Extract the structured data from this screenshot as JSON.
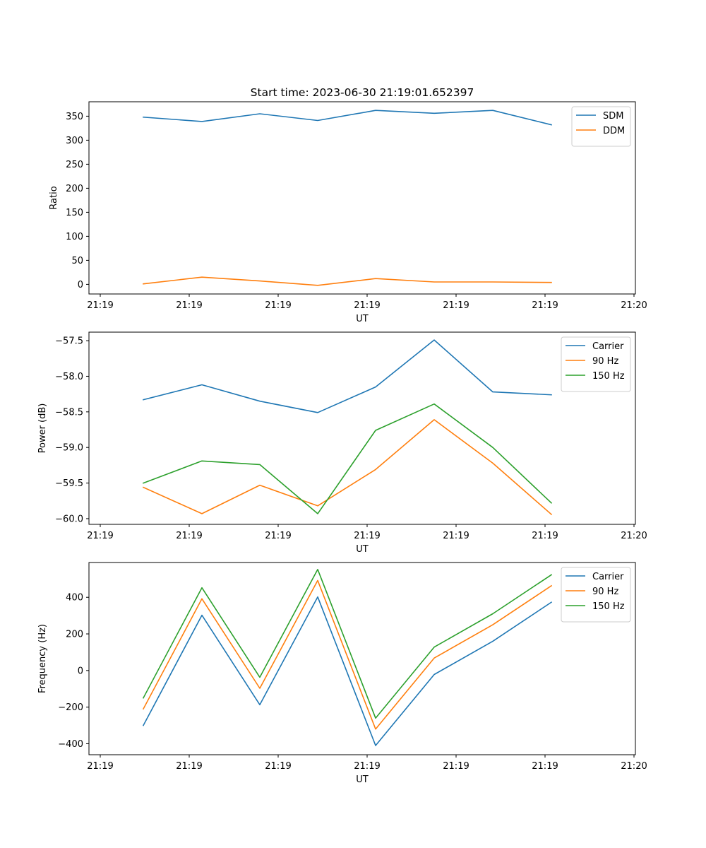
{
  "chart_data": [
    {
      "type": "line",
      "title": "Start time: 2023-06-30 21:19:01.652397",
      "xlabel": "UT",
      "ylabel": "Ratio",
      "x_tick_labels": [
        "21:19",
        "21:19",
        "21:19",
        "21:19",
        "21:19",
        "21:19",
        "21:20"
      ],
      "ylim": [
        -20,
        380
      ],
      "y_ticks": [
        0,
        50,
        100,
        150,
        200,
        250,
        300,
        350
      ],
      "legend_position": "top-right",
      "series": [
        {
          "name": "SDM",
          "color": "#1f77b4",
          "values": [
            348,
            339,
            355,
            341,
            362,
            356,
            362,
            332
          ]
        },
        {
          "name": "DDM",
          "color": "#ff7f0e",
          "values": [
            1,
            15,
            7,
            -2,
            12,
            5,
            5,
            4
          ]
        }
      ]
    },
    {
      "type": "line",
      "title": "",
      "xlabel": "UT",
      "ylabel": "Power (dB)",
      "x_tick_labels": [
        "21:19",
        "21:19",
        "21:19",
        "21:19",
        "21:19",
        "21:19",
        "21:20"
      ],
      "ylim": [
        -60.08,
        -57.38
      ],
      "y_ticks": [
        -60.0,
        -59.5,
        -59.0,
        -58.5,
        -58.0,
        -57.5
      ],
      "y_tick_labels": [
        "−60.0",
        "−59.5",
        "−59.0",
        "−58.5",
        "−58.0",
        "−57.5"
      ],
      "legend_position": "top-right",
      "series": [
        {
          "name": "Carrier",
          "color": "#1f77b4",
          "values": [
            -58.33,
            -58.12,
            -58.35,
            -58.51,
            -58.15,
            -57.49,
            -58.22,
            -58.26
          ]
        },
        {
          "name": "90 Hz",
          "color": "#ff7f0e",
          "values": [
            -59.56,
            -59.93,
            -59.53,
            -59.82,
            -59.31,
            -58.61,
            -59.22,
            -59.94
          ]
        },
        {
          "name": "150 Hz",
          "color": "#2ca02c",
          "values": [
            -59.5,
            -59.19,
            -59.24,
            -59.93,
            -58.76,
            -58.39,
            -59.0,
            -59.78
          ]
        }
      ]
    },
    {
      "type": "line",
      "title": "",
      "xlabel": "UT",
      "ylabel": "Frequency (Hz)",
      "x_tick_labels": [
        "21:19",
        "21:19",
        "21:19",
        "21:19",
        "21:19",
        "21:19",
        "21:20"
      ],
      "ylim": [
        -460,
        590
      ],
      "y_ticks": [
        -400,
        -200,
        0,
        200,
        400
      ],
      "y_tick_labels": [
        "−400",
        "−200",
        "0",
        "200",
        "400"
      ],
      "legend_position": "top-right",
      "series": [
        {
          "name": "Carrier",
          "color": "#1f77b4",
          "values": [
            -300,
            302,
            -187,
            402,
            -410,
            -22,
            160,
            373
          ]
        },
        {
          "name": "90 Hz",
          "color": "#ff7f0e",
          "values": [
            -210,
            392,
            -97,
            492,
            -320,
            68,
            250,
            463
          ]
        },
        {
          "name": "150 Hz",
          "color": "#2ca02c",
          "values": [
            -150,
            452,
            -37,
            552,
            -260,
            128,
            310,
            523
          ]
        }
      ]
    }
  ]
}
